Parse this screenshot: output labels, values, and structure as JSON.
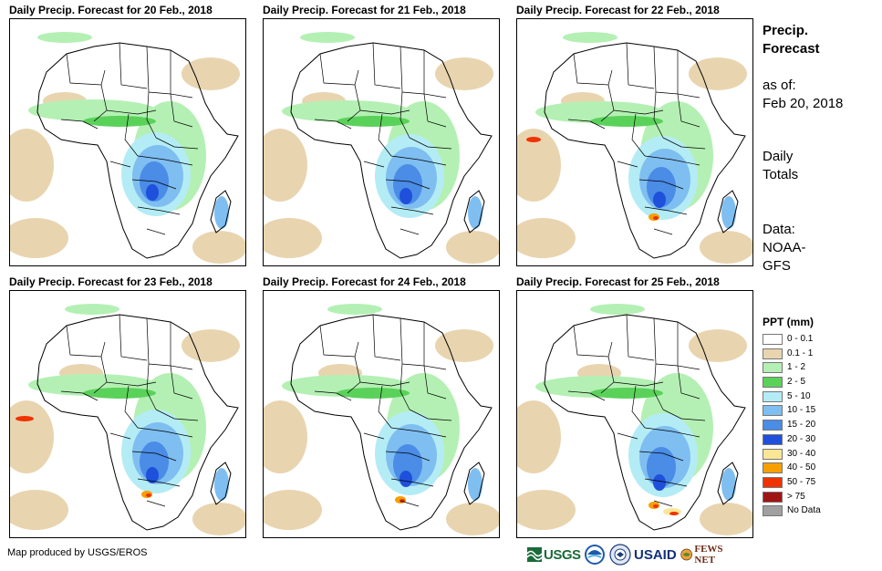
{
  "panels": [
    {
      "title": "Daily Precip. Forecast for 20 Feb., 2018"
    },
    {
      "title": "Daily Precip. Forecast for 21 Feb., 2018"
    },
    {
      "title": "Daily Precip. Forecast for 22 Feb., 2018"
    },
    {
      "title": "Daily Precip. Forecast for 23 Feb., 2018"
    },
    {
      "title": "Daily Precip. Forecast for 24 Feb., 2018"
    },
    {
      "title": "Daily Precip. Forecast for 25 Feb., 2018"
    }
  ],
  "sidebar": {
    "title_line1": "Precip.",
    "title_line2": "Forecast",
    "asof_label": "as of:",
    "asof_date": "Feb 20, 2018",
    "totals_line1": "Daily",
    "totals_line2": "Totals",
    "data_line1": "Data:",
    "data_line2": "NOAA-",
    "data_line3": "GFS"
  },
  "legend": {
    "title": "PPT (mm)",
    "items": [
      {
        "label": "0 - 0.1",
        "color": "#ffffff"
      },
      {
        "label": "0.1 - 1",
        "color": "#e8d5b0"
      },
      {
        "label": "1 - 2",
        "color": "#b4f0b4"
      },
      {
        "label": "2 - 5",
        "color": "#5ad25a"
      },
      {
        "label": "5 - 10",
        "color": "#b4ecf5"
      },
      {
        "label": "10 - 15",
        "color": "#7fbef0"
      },
      {
        "label": "15 - 20",
        "color": "#4a8ce6"
      },
      {
        "label": "20 - 30",
        "color": "#1e50dc"
      },
      {
        "label": "30 - 40",
        "color": "#fae696"
      },
      {
        "label": "40 - 50",
        "color": "#f5a000"
      },
      {
        "label": "50 - 75",
        "color": "#f03200"
      },
      {
        "label": "> 75",
        "color": "#a01414"
      },
      {
        "label": "No Data",
        "color": "#a0a0a0"
      }
    ]
  },
  "credit": "Map produced by USGS/EROS",
  "logos": {
    "usgs": "USGS",
    "usaid": "USAID",
    "fews": "FEWS NET"
  }
}
